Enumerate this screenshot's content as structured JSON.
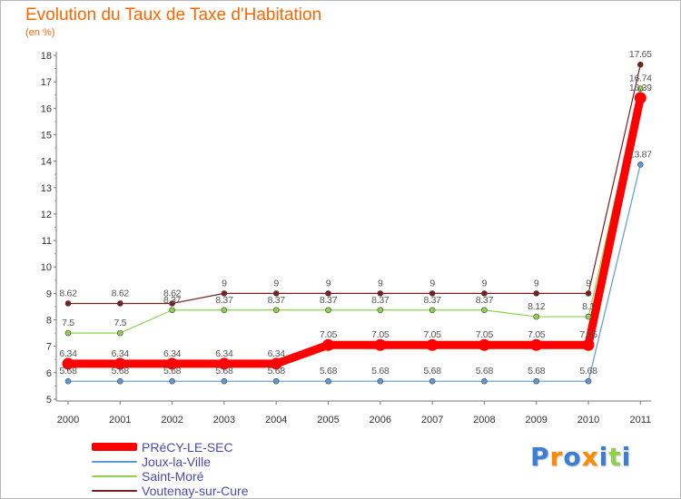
{
  "chart_data": {
    "type": "line",
    "title": "Evolution du Taux de Taxe d'Habitation",
    "subtitle": "(en %)",
    "xlabel": "",
    "ylabel": "",
    "ylim": [
      5,
      18
    ],
    "yticks": [
      "5",
      "6",
      "7",
      "8",
      "9",
      "10",
      "11",
      "12",
      "13",
      "14",
      "15",
      "16",
      "17",
      "18"
    ],
    "categories": [
      "2000",
      "2001",
      "2002",
      "2003",
      "2004",
      "2005",
      "2006",
      "2007",
      "2008",
      "2009",
      "2010",
      "2011"
    ],
    "grid": false,
    "legend_position": "bottom-left",
    "series": [
      {
        "name": "Joux-la-Ville",
        "color": "#5b9bd5",
        "values": [
          5.68,
          5.68,
          5.68,
          5.68,
          5.68,
          5.68,
          5.68,
          5.68,
          5.68,
          5.68,
          5.68,
          13.87
        ],
        "labels": [
          "5.68",
          "5.68",
          "5.68",
          "5.68",
          "5.68",
          "5.68",
          "5.68",
          "5.68",
          "5.68",
          "5.68",
          "5.68",
          "13.87"
        ]
      },
      {
        "name": "Saint-Moré",
        "color": "#8ed14f",
        "values": [
          7.5,
          7.5,
          8.37,
          8.37,
          8.37,
          8.37,
          8.37,
          8.37,
          8.37,
          8.12,
          8.12,
          16.74
        ],
        "labels": [
          "7.5",
          "7.5",
          "8.37",
          "8.37",
          "8.37",
          "8.37",
          "8.37",
          "8.37",
          "8.37",
          "8.12",
          "8.1",
          "16.74"
        ]
      },
      {
        "name": "Voutenay-sur-Cure",
        "color": "#7b1e1e",
        "values": [
          8.62,
          8.62,
          8.62,
          9,
          9,
          9,
          9,
          9,
          9,
          9,
          9,
          17.65
        ],
        "labels": [
          "8.62",
          "8.62",
          "8.62",
          "9",
          "9",
          "9",
          "9",
          "9",
          "9",
          "9",
          "9",
          "17.65"
        ]
      },
      {
        "name": "PRéCY-LE-SEC",
        "color": "#ff0000",
        "highlight": true,
        "values": [
          6.34,
          6.34,
          6.34,
          6.34,
          6.34,
          7.05,
          7.05,
          7.05,
          7.05,
          7.05,
          7.05,
          16.39
        ],
        "labels": [
          "6.34",
          "6.34",
          "6.34",
          "6.34",
          "6.34",
          "7.05",
          "7.05",
          "7.05",
          "7.05",
          "7.05",
          "7.05",
          "16.39"
        ]
      }
    ]
  },
  "legend": {
    "items": [
      {
        "label": "PRéCY-LE-SEC",
        "color": "#ff0000",
        "highlight": true
      },
      {
        "label": "Joux-la-Ville",
        "color": "#5b9bd5"
      },
      {
        "label": "Saint-Moré",
        "color": "#8ed14f"
      },
      {
        "label": "Voutenay-sur-Cure",
        "color": "#7b1e1e"
      }
    ],
    "text_color": "#4a4ab0"
  },
  "logo": {
    "text": "Proxiti",
    "letter_colors": [
      "#3a7fd5",
      "#ff8a00",
      "#3a7fd5",
      "#ff8a00",
      "#3a7fd5",
      "#8ed14f",
      "#3a7fd5"
    ]
  }
}
